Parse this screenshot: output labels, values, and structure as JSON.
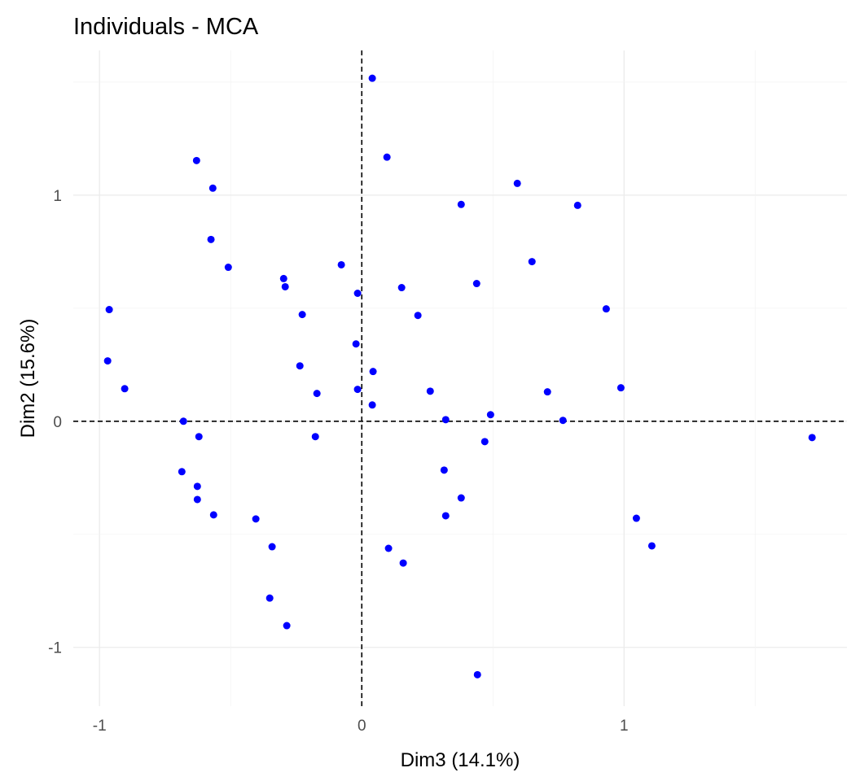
{
  "chart_data": {
    "type": "scatter",
    "title": "Individuals - MCA",
    "xlabel": "Dim3 (14.1%)",
    "ylabel": "Dim2 (15.6%)",
    "xlim": [
      -1.1,
      1.85
    ],
    "ylim": [
      -1.26,
      1.64
    ],
    "xticks": [
      -1,
      0,
      1
    ],
    "yticks": [
      -1,
      0,
      1
    ],
    "xtick_labels": [
      "-1",
      "0",
      "1"
    ],
    "ytick_labels": [
      "-1",
      "0",
      "1"
    ],
    "grid": true,
    "reference_lines": {
      "x": 0,
      "y": 0,
      "style": "dashed"
    },
    "point_color": "#0000ff",
    "points": [
      [
        0.04,
        1.517
      ],
      [
        0.096,
        1.168
      ],
      [
        -0.63,
        1.153
      ],
      [
        -0.568,
        1.031
      ],
      [
        0.593,
        1.052
      ],
      [
        0.379,
        0.959
      ],
      [
        0.823,
        0.955
      ],
      [
        -0.575,
        0.804
      ],
      [
        -0.509,
        0.681
      ],
      [
        0.649,
        0.706
      ],
      [
        -0.078,
        0.692
      ],
      [
        -0.298,
        0.631
      ],
      [
        -0.292,
        0.595
      ],
      [
        0.152,
        0.591
      ],
      [
        0.438,
        0.609
      ],
      [
        -0.016,
        0.566
      ],
      [
        -0.963,
        0.494
      ],
      [
        -0.227,
        0.472
      ],
      [
        0.214,
        0.468
      ],
      [
        0.932,
        0.497
      ],
      [
        -0.022,
        0.342
      ],
      [
        -0.969,
        0.267
      ],
      [
        -0.236,
        0.245
      ],
      [
        0.043,
        0.22
      ],
      [
        -0.904,
        0.144
      ],
      [
        -0.171,
        0.123
      ],
      [
        0.261,
        0.133
      ],
      [
        0.708,
        0.13
      ],
      [
        0.988,
        0.148
      ],
      [
        -0.016,
        0.141
      ],
      [
        0.04,
        0.072
      ],
      [
        -0.68,
        0.0
      ],
      [
        0.32,
        0.007
      ],
      [
        0.491,
        0.029
      ],
      [
        0.767,
        0.004
      ],
      [
        -0.621,
        -0.068
      ],
      [
        -0.177,
        -0.068
      ],
      [
        0.469,
        -0.09
      ],
      [
        1.717,
        -0.072
      ],
      [
        -0.686,
        -0.223
      ],
      [
        0.314,
        -0.216
      ],
      [
        -0.627,
        -0.288
      ],
      [
        -0.627,
        -0.346
      ],
      [
        0.379,
        -0.339
      ],
      [
        -0.565,
        -0.414
      ],
      [
        0.32,
        -0.418
      ],
      [
        -0.404,
        -0.432
      ],
      [
        1.047,
        -0.429
      ],
      [
        -0.342,
        -0.555
      ],
      [
        0.102,
        -0.562
      ],
      [
        1.106,
        -0.551
      ],
      [
        0.158,
        -0.627
      ],
      [
        -0.351,
        -0.782
      ],
      [
        -0.286,
        -0.904
      ],
      [
        0.441,
        -1.121
      ]
    ]
  }
}
